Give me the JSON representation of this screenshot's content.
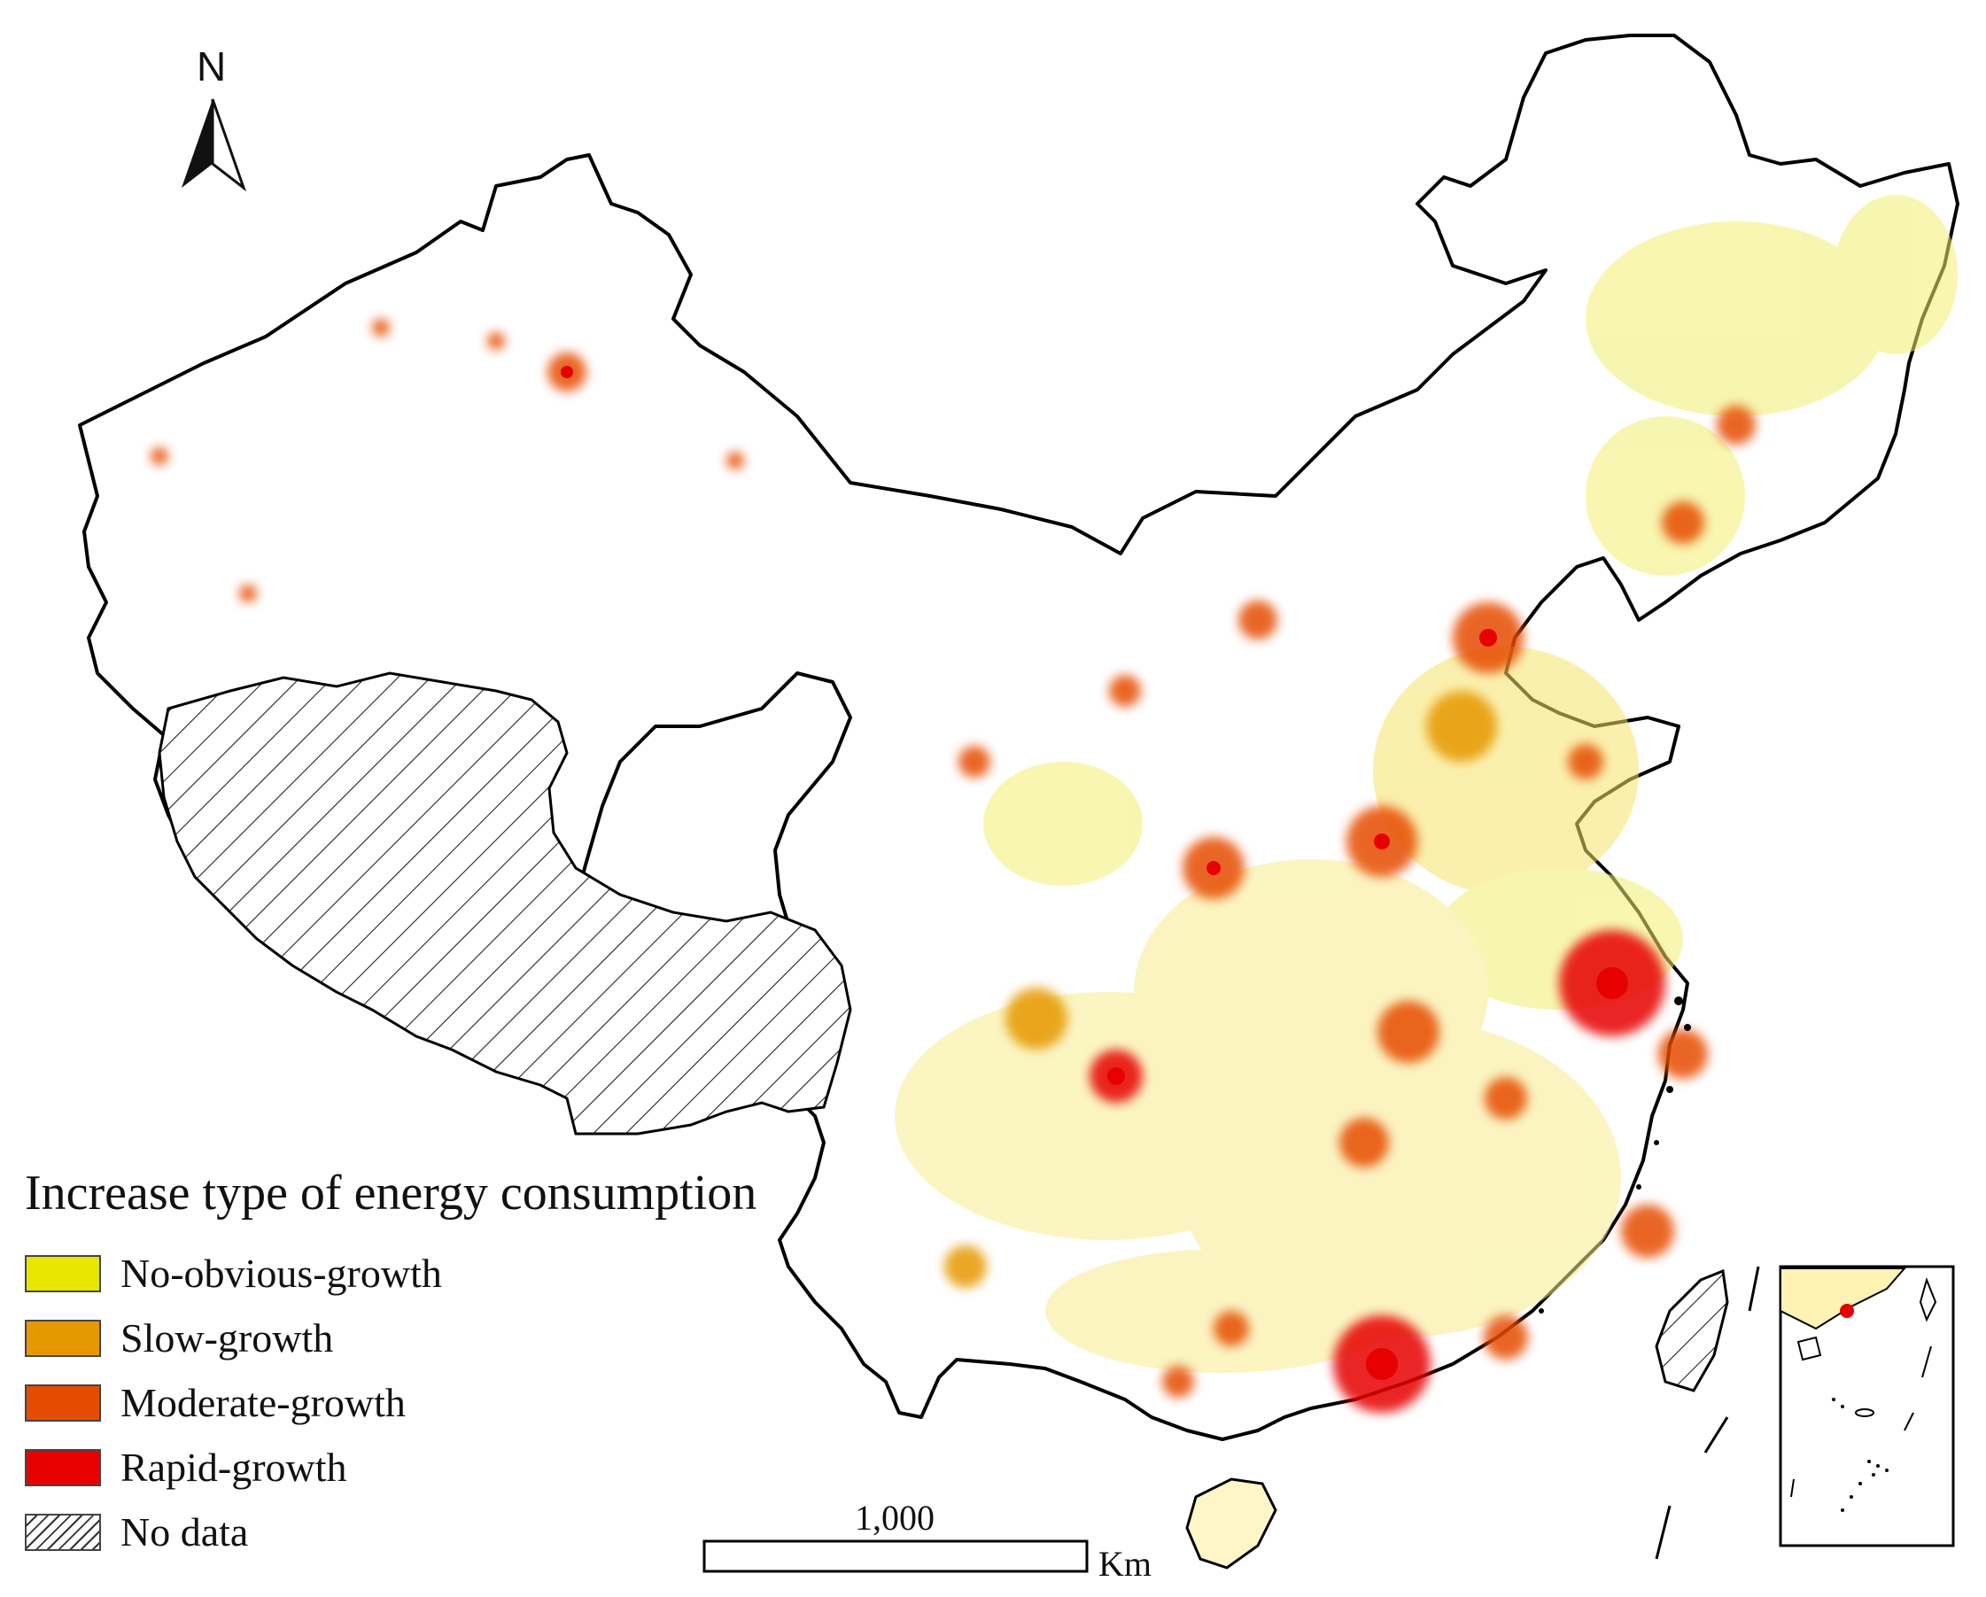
{
  "legend": {
    "title": "Increase type of energy consumption",
    "items": [
      {
        "label": "No-obvious-growth",
        "color": "#e6e600",
        "pattern": "solid"
      },
      {
        "label": "Slow-growth",
        "color": "#e69800",
        "pattern": "solid"
      },
      {
        "label": "Moderate-growth",
        "color": "#e64c00",
        "pattern": "solid"
      },
      {
        "label": "Rapid-growth",
        "color": "#e60000",
        "pattern": "solid"
      },
      {
        "label": "No data",
        "color": "#ffffff",
        "pattern": "hatch"
      }
    ]
  },
  "scale_bar": {
    "value": "1,000",
    "unit": "Km"
  },
  "north_arrow": {
    "label": "N"
  },
  "colors": {
    "boundary": "#000000",
    "background": "#ffffff"
  }
}
